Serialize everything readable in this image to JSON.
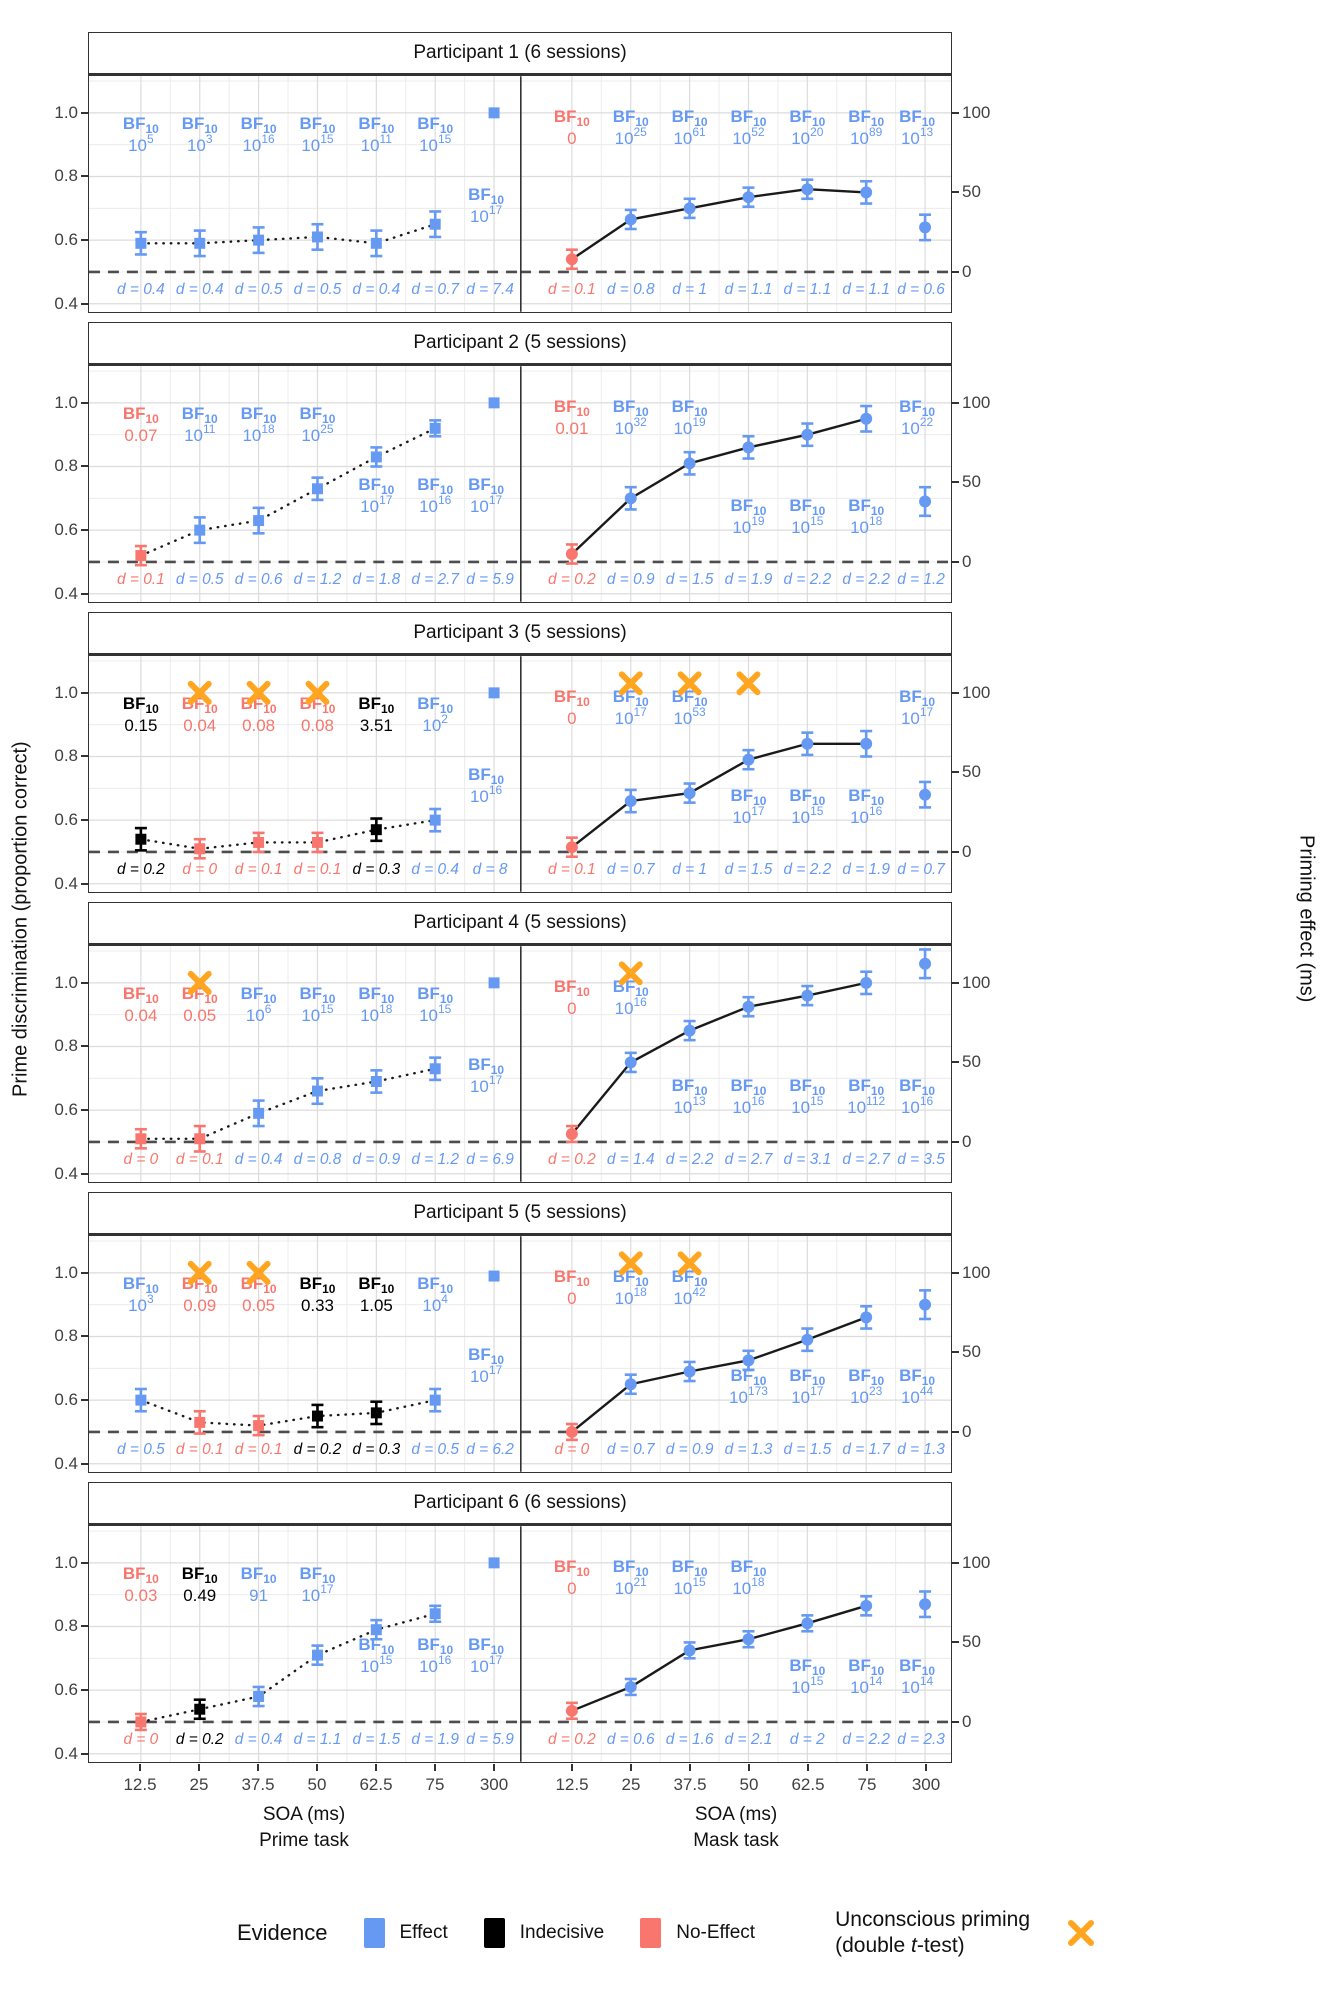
{
  "colors": {
    "effect": "#6699F2",
    "indecisive": "#000000",
    "noeffect": "#F8766D",
    "xmark": "#FFA51F",
    "baseline": "#4D4D4D",
    "data_line": "#1A1A1A",
    "grid_major": "#DCDCDC",
    "grid_minor": "#ECECEC",
    "panel_border": "#333333",
    "tick_text": "#404040"
  },
  "y_axis_left": {
    "title": "Prime discrimination (proportion correct)",
    "ticks": [
      "1.0",
      "0.8",
      "0.6",
      "0.4"
    ]
  },
  "y_axis_right": {
    "title": "Priming effect (ms)",
    "ticks": [
      "100",
      "50",
      "0"
    ]
  },
  "x_axis": {
    "ticks": [
      "12.5",
      "25",
      "37.5",
      "50",
      "62.5",
      "75",
      "300"
    ],
    "left_title": "SOA (ms)",
    "left_subtitle": "Prime task",
    "right_title": "SOA (ms)",
    "right_subtitle": "Mask task"
  },
  "legend": {
    "title": "Evidence",
    "items": [
      {
        "label": "Effect",
        "color": "#6699F2"
      },
      {
        "label": "Indecisive",
        "color": "#000000"
      },
      {
        "label": "No-Effect",
        "color": "#F8766D"
      }
    ],
    "unconscious": {
      "line1": "Unconscious priming",
      "pre": "(double ",
      "t_italic": "t",
      "post": "-test)",
      "color": "#FFA51F"
    }
  },
  "chart_data": {
    "type": "line",
    "x_categories": [
      "12.5",
      "25",
      "37.5",
      "50",
      "62.5",
      "75",
      "300"
    ],
    "left_axis": {
      "label": "Prime discrimination (proportion correct)",
      "ylim": [
        0.375,
        1.115
      ],
      "ticks": [
        0.4,
        0.6,
        0.8,
        1.0
      ],
      "baseline": 0.5
    },
    "right_axis": {
      "label": "Priming effect (ms)",
      "ticks": [
        0,
        50,
        100
      ],
      "baseline": 0
    },
    "point_format": [
      "value",
      "error",
      "evidence",
      "bf10",
      "bf_row",
      "d",
      "x_mark"
    ],
    "tasks": {
      "prime": {
        "marker": "square",
        "line": "dotted",
        "units": "proportion"
      },
      "mask": {
        "marker": "circle",
        "line": "solid",
        "units": "ms"
      }
    },
    "participants": [
      {
        "title": "Participant 1 (6 sessions)",
        "prime": [
          [
            0.59,
            0.035,
            "effect",
            "10^5",
            "h",
            "0.4",
            0
          ],
          [
            0.59,
            0.04,
            "effect",
            "10^3",
            "h",
            "0.4",
            0
          ],
          [
            0.6,
            0.04,
            "effect",
            "10^16",
            "h",
            "0.5",
            0
          ],
          [
            0.61,
            0.04,
            "effect",
            "10^15",
            "h",
            "0.5",
            0
          ],
          [
            0.59,
            0.04,
            "effect",
            "10^11",
            "h",
            "0.4",
            0
          ],
          [
            0.65,
            0.04,
            "effect",
            "10^15",
            "h",
            "0.7",
            0
          ],
          [
            1.0,
            0,
            "effect",
            "10^17",
            "l",
            "7.4",
            0
          ]
        ],
        "mask": [
          [
            8,
            6,
            "noeffect",
            "0",
            "h",
            "0.1",
            0
          ],
          [
            33,
            6,
            "effect",
            "10^25",
            "h",
            "0.8",
            0
          ],
          [
            40,
            6,
            "effect",
            "10^61",
            "h",
            "1",
            0
          ],
          [
            47,
            6,
            "effect",
            "10^52",
            "h",
            "1.1",
            0
          ],
          [
            52,
            6,
            "effect",
            "10^20",
            "h",
            "1.1",
            0
          ],
          [
            50,
            7,
            "effect",
            "10^89",
            "h",
            "1.1",
            0
          ],
          [
            28,
            8,
            "effect",
            "10^13",
            "h",
            "0.6",
            0
          ]
        ]
      },
      {
        "title": "Participant 2 (5 sessions)",
        "prime": [
          [
            0.52,
            0.03,
            "noeffect",
            "0.07",
            "h",
            "0.1",
            0
          ],
          [
            0.6,
            0.04,
            "effect",
            "10^11",
            "h",
            "0.5",
            0
          ],
          [
            0.63,
            0.04,
            "effect",
            "10^18",
            "h",
            "0.6",
            0
          ],
          [
            0.73,
            0.035,
            "effect",
            "10^25",
            "h",
            "1.2",
            0
          ],
          [
            0.83,
            0.03,
            "effect",
            "10^17",
            "l",
            "1.8",
            0
          ],
          [
            0.92,
            0.025,
            "effect",
            "10^16",
            "l",
            "2.7",
            0
          ],
          [
            1.0,
            0,
            "effect",
            "10^17",
            "l",
            "5.9",
            0
          ]
        ],
        "mask": [
          [
            5,
            6,
            "noeffect",
            "0.01",
            "h",
            "0.2",
            0
          ],
          [
            40,
            7,
            "effect",
            "10^32",
            "h",
            "0.9",
            0
          ],
          [
            62,
            7,
            "effect",
            "10^19",
            "h",
            "1.5",
            0
          ],
          [
            72,
            7,
            "effect",
            "10^19",
            "l",
            "1.9",
            0
          ],
          [
            80,
            7,
            "effect",
            "10^15",
            "l",
            "2.2",
            0
          ],
          [
            90,
            8,
            "effect",
            "10^18",
            "l",
            "2.2",
            0
          ],
          [
            38,
            9,
            "effect",
            "10^22",
            "h",
            "1.2",
            0
          ]
        ]
      },
      {
        "title": "Participant 3 (5 sessions)",
        "prime": [
          [
            0.54,
            0.035,
            "indecisive",
            "0.15",
            "h",
            "0.2",
            0
          ],
          [
            0.51,
            0.03,
            "noeffect",
            "0.04",
            "h",
            "0",
            1
          ],
          [
            0.53,
            0.03,
            "noeffect",
            "0.08",
            "h",
            "0.1",
            1
          ],
          [
            0.53,
            0.03,
            "noeffect",
            "0.08",
            "h",
            "0.1",
            1
          ],
          [
            0.57,
            0.035,
            "indecisive",
            "3.51",
            "h",
            "0.3",
            0
          ],
          [
            0.6,
            0.035,
            "effect",
            "10^2",
            "h",
            "0.4",
            0
          ],
          [
            1.0,
            0,
            "effect",
            "10^16",
            "l",
            "8",
            0
          ]
        ],
        "mask": [
          [
            3,
            6,
            "noeffect",
            "0",
            "h",
            "0.1",
            0
          ],
          [
            32,
            7,
            "effect",
            "10^17",
            "h",
            "0.7",
            1
          ],
          [
            37,
            6,
            "effect",
            "10^53",
            "h",
            "1",
            1
          ],
          [
            58,
            6,
            "effect",
            "10^17",
            "l",
            "1.5",
            1
          ],
          [
            68,
            7,
            "effect",
            "10^15",
            "l",
            "2.2",
            0
          ],
          [
            68,
            8,
            "effect",
            "10^16",
            "l",
            "1.9",
            0
          ],
          [
            36,
            8,
            "effect",
            "10^17",
            "h",
            "0.7",
            0
          ]
        ]
      },
      {
        "title": "Participant 4 (5 sessions)",
        "prime": [
          [
            0.51,
            0.03,
            "noeffect",
            "0.04",
            "h",
            "0",
            0
          ],
          [
            0.51,
            0.04,
            "noeffect",
            "0.05",
            "h",
            "0.1",
            1
          ],
          [
            0.59,
            0.04,
            "effect",
            "10^6",
            "h",
            "0.4",
            0
          ],
          [
            0.66,
            0.04,
            "effect",
            "10^15",
            "h",
            "0.8",
            0
          ],
          [
            0.69,
            0.035,
            "effect",
            "10^18",
            "h",
            "0.9",
            0
          ],
          [
            0.73,
            0.035,
            "effect",
            "10^15",
            "h",
            "1.2",
            0
          ],
          [
            1.0,
            0,
            "effect",
            "10^17",
            "l",
            "6.9",
            0
          ]
        ],
        "mask": [
          [
            5,
            5,
            "noeffect",
            "0",
            "h",
            "0.2",
            0
          ],
          [
            50,
            6,
            "effect",
            "10^16",
            "h",
            "1.4",
            1
          ],
          [
            70,
            6,
            "effect",
            "10^13",
            "l",
            "2.2",
            0
          ],
          [
            85,
            6,
            "effect",
            "10^16",
            "l",
            "2.7",
            0
          ],
          [
            92,
            6,
            "effect",
            "10^15",
            "l",
            "3.1",
            0
          ],
          [
            100,
            7,
            "effect",
            "10^112",
            "l",
            "2.7",
            0
          ],
          [
            112,
            9,
            "effect",
            "10^16",
            "l",
            "3.5",
            0
          ]
        ]
      },
      {
        "title": "Participant 5 (5 sessions)",
        "prime": [
          [
            0.6,
            0.035,
            "effect",
            "10^3",
            "h",
            "0.5",
            0
          ],
          [
            0.53,
            0.035,
            "noeffect",
            "0.09",
            "h",
            "0.1",
            1
          ],
          [
            0.52,
            0.03,
            "noeffect",
            "0.05",
            "h",
            "0.1",
            1
          ],
          [
            0.55,
            0.035,
            "indecisive",
            "0.33",
            "h",
            "0.2",
            0
          ],
          [
            0.56,
            0.035,
            "indecisive",
            "1.05",
            "h",
            "0.3",
            0
          ],
          [
            0.6,
            0.035,
            "effect",
            "10^4",
            "h",
            "0.5",
            0
          ],
          [
            0.99,
            0,
            "effect",
            "10^17",
            "l",
            "6.2",
            0
          ]
        ],
        "mask": [
          [
            0,
            5,
            "noeffect",
            "0",
            "h",
            "0",
            0
          ],
          [
            30,
            6,
            "effect",
            "10^18",
            "h",
            "0.7",
            1
          ],
          [
            38,
            6,
            "effect",
            "10^42",
            "h",
            "0.9",
            1
          ],
          [
            45,
            6,
            "effect",
            "10^173",
            "l",
            "1.3",
            0
          ],
          [
            58,
            7,
            "effect",
            "10^17",
            "l",
            "1.5",
            0
          ],
          [
            72,
            7,
            "effect",
            "10^23",
            "l",
            "1.7",
            0
          ],
          [
            80,
            9,
            "effect",
            "10^44",
            "l",
            "1.3",
            0
          ]
        ]
      },
      {
        "title": "Participant 6 (6 sessions)",
        "prime": [
          [
            0.5,
            0.025,
            "noeffect",
            "0.03",
            "h",
            "0",
            0
          ],
          [
            0.54,
            0.03,
            "indecisive",
            "0.49",
            "h",
            "0.2",
            0
          ],
          [
            0.58,
            0.03,
            "effect",
            "91",
            "h",
            "0.4",
            0
          ],
          [
            0.71,
            0.03,
            "effect",
            "10^17",
            "h",
            "1.1",
            0
          ],
          [
            0.79,
            0.03,
            "effect",
            "10^15",
            "l",
            "1.5",
            0
          ],
          [
            0.84,
            0.025,
            "effect",
            "10^16",
            "l",
            "1.9",
            0
          ],
          [
            1.0,
            0,
            "effect",
            "10^17",
            "l",
            "5.9",
            0
          ]
        ],
        "mask": [
          [
            7,
            5,
            "noeffect",
            "0",
            "h",
            "0.2",
            0
          ],
          [
            22,
            5,
            "effect",
            "10^21",
            "h",
            "0.6",
            0
          ],
          [
            45,
            5,
            "effect",
            "10^15",
            "h",
            "1.6",
            0
          ],
          [
            52,
            5,
            "effect",
            "10^18",
            "h",
            "2.1",
            0
          ],
          [
            62,
            5,
            "effect",
            "10^15",
            "l",
            "2",
            0
          ],
          [
            73,
            6,
            "effect",
            "10^14",
            "l",
            "2.2",
            0
          ],
          [
            74,
            8,
            "effect",
            "10^14",
            "l",
            "2.3",
            0
          ]
        ]
      }
    ]
  }
}
